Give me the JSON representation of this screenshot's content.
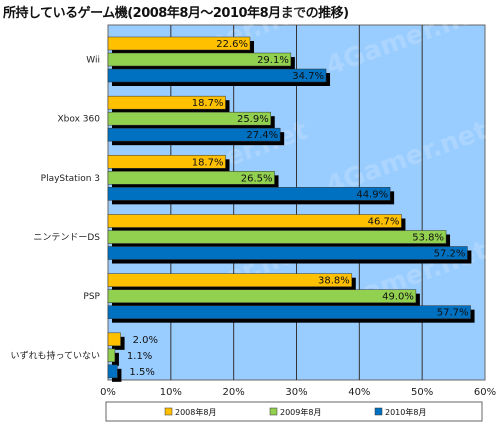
{
  "chart_data": {
    "type": "bar",
    "orientation": "horizontal",
    "title": "所持しているゲーム機(2008年8月～2010年8月までの推移)",
    "categories": [
      "Wii",
      "Xbox 360",
      "PlayStation 3",
      "ニンテンドーDS",
      "PSP",
      "いずれも持っていない"
    ],
    "series": [
      {
        "name": "2008年8月",
        "color": "#FFC000",
        "values": [
          22.6,
          18.7,
          18.7,
          46.7,
          38.8,
          2.0
        ]
      },
      {
        "name": "2009年8月",
        "color": "#92D050",
        "values": [
          29.1,
          25.9,
          26.5,
          53.8,
          49.0,
          1.1
        ]
      },
      {
        "name": "2010年8月",
        "color": "#0070C0",
        "values": [
          34.7,
          27.4,
          44.9,
          57.2,
          57.7,
          1.5
        ]
      }
    ],
    "xlim": [
      0,
      60
    ],
    "xticks": [
      "0%",
      "10%",
      "20%",
      "30%",
      "40%",
      "50%",
      "60%"
    ],
    "grid": true,
    "legend_position": "bottom",
    "plot_background": "#99CCFF",
    "watermark": "4Gamer.net"
  }
}
